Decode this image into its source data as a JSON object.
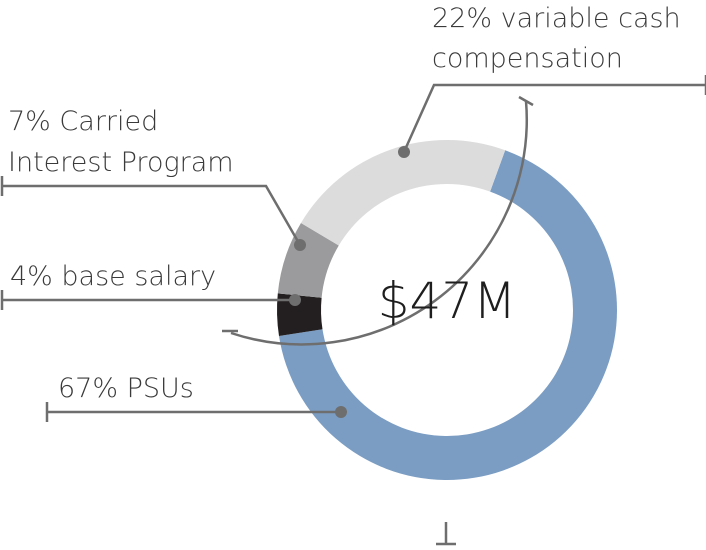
{
  "chart_data": {
    "type": "pie",
    "variant": "donut",
    "center_label": "$47M",
    "slices": [
      {
        "name": "PSUs",
        "label": "67% PSUs",
        "value": 67,
        "color": "#7b9dc3"
      },
      {
        "name": "base salary",
        "label": "4% base salary",
        "value": 4,
        "color": "#231f20"
      },
      {
        "name": "Carried Interest Program",
        "label_lines": [
          "7% Carried",
          "Interest Program"
        ],
        "value": 7,
        "color": "#9b9a9c"
      },
      {
        "name": "variable cash compensation",
        "label_lines": [
          "22% variable cash",
          "compensation"
        ],
        "value": 22,
        "color": "#dcdcdc"
      }
    ]
  }
}
